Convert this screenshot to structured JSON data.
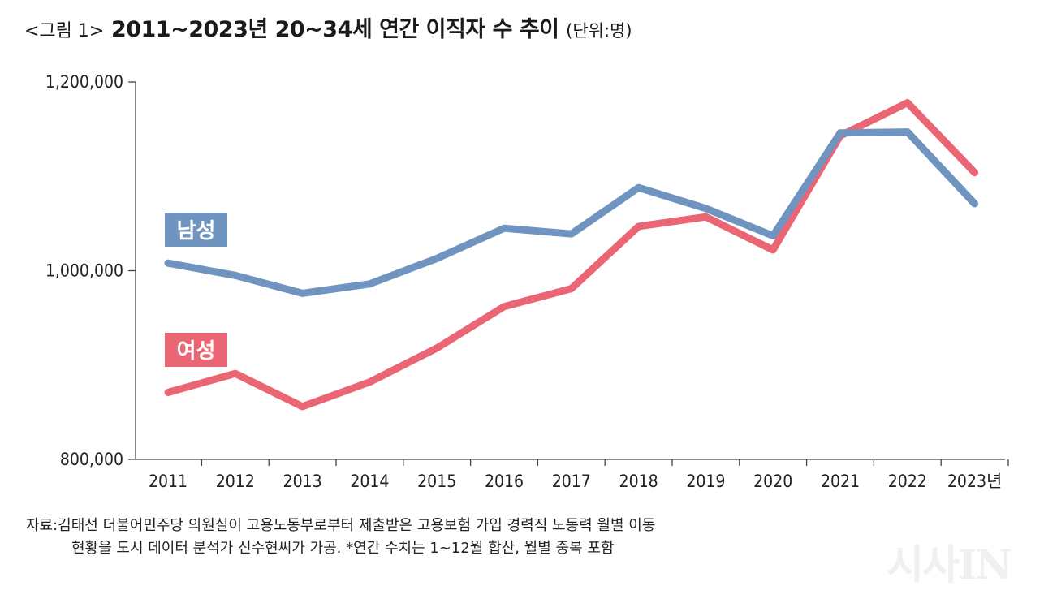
{
  "title": {
    "prefix": "<그림 1>",
    "main": "2011~2023년 20~34세 연간 이직자 수 추이",
    "unit": "(단위:명)"
  },
  "chart_data": {
    "type": "line",
    "title": "2011~2023년 20~34세 연간 이직자 수 추이",
    "unit": "명",
    "categories": [
      "2011",
      "2012",
      "2013",
      "2014",
      "2015",
      "2016",
      "2017",
      "2018",
      "2019",
      "2020",
      "2021",
      "2022",
      "2023년"
    ],
    "y_ticks": [
      {
        "value": 800000,
        "label": "800,000"
      },
      {
        "value": 1000000,
        "label": "1,000,000"
      },
      {
        "value": 1200000,
        "label": "1,200,000"
      }
    ],
    "ylim": [
      800000,
      1200000
    ],
    "series": [
      {
        "name": "남성",
        "color": "#6f94bf",
        "values": [
          1008000,
          995000,
          976000,
          986000,
          1013000,
          1045000,
          1039000,
          1088000,
          1066000,
          1037000,
          1146000,
          1147000,
          1071000
        ]
      },
      {
        "name": "여성",
        "color": "#eb6675",
        "values": [
          871000,
          891000,
          856000,
          882000,
          918000,
          962000,
          981000,
          1047000,
          1057000,
          1022000,
          1143000,
          1178000,
          1104000
        ]
      }
    ]
  },
  "source": {
    "line1": "자료:김태선 더불어민주당 의원실이 고용노동부로부터 제출받은 고용보험 가입 경력직 노동력 월별 이동",
    "line2": "현황을 도시 데이터 분석가 신수현씨가 가공. *연간 수치는 1~12월 합산, 월별 중복 포함"
  },
  "watermark": "시사IN"
}
